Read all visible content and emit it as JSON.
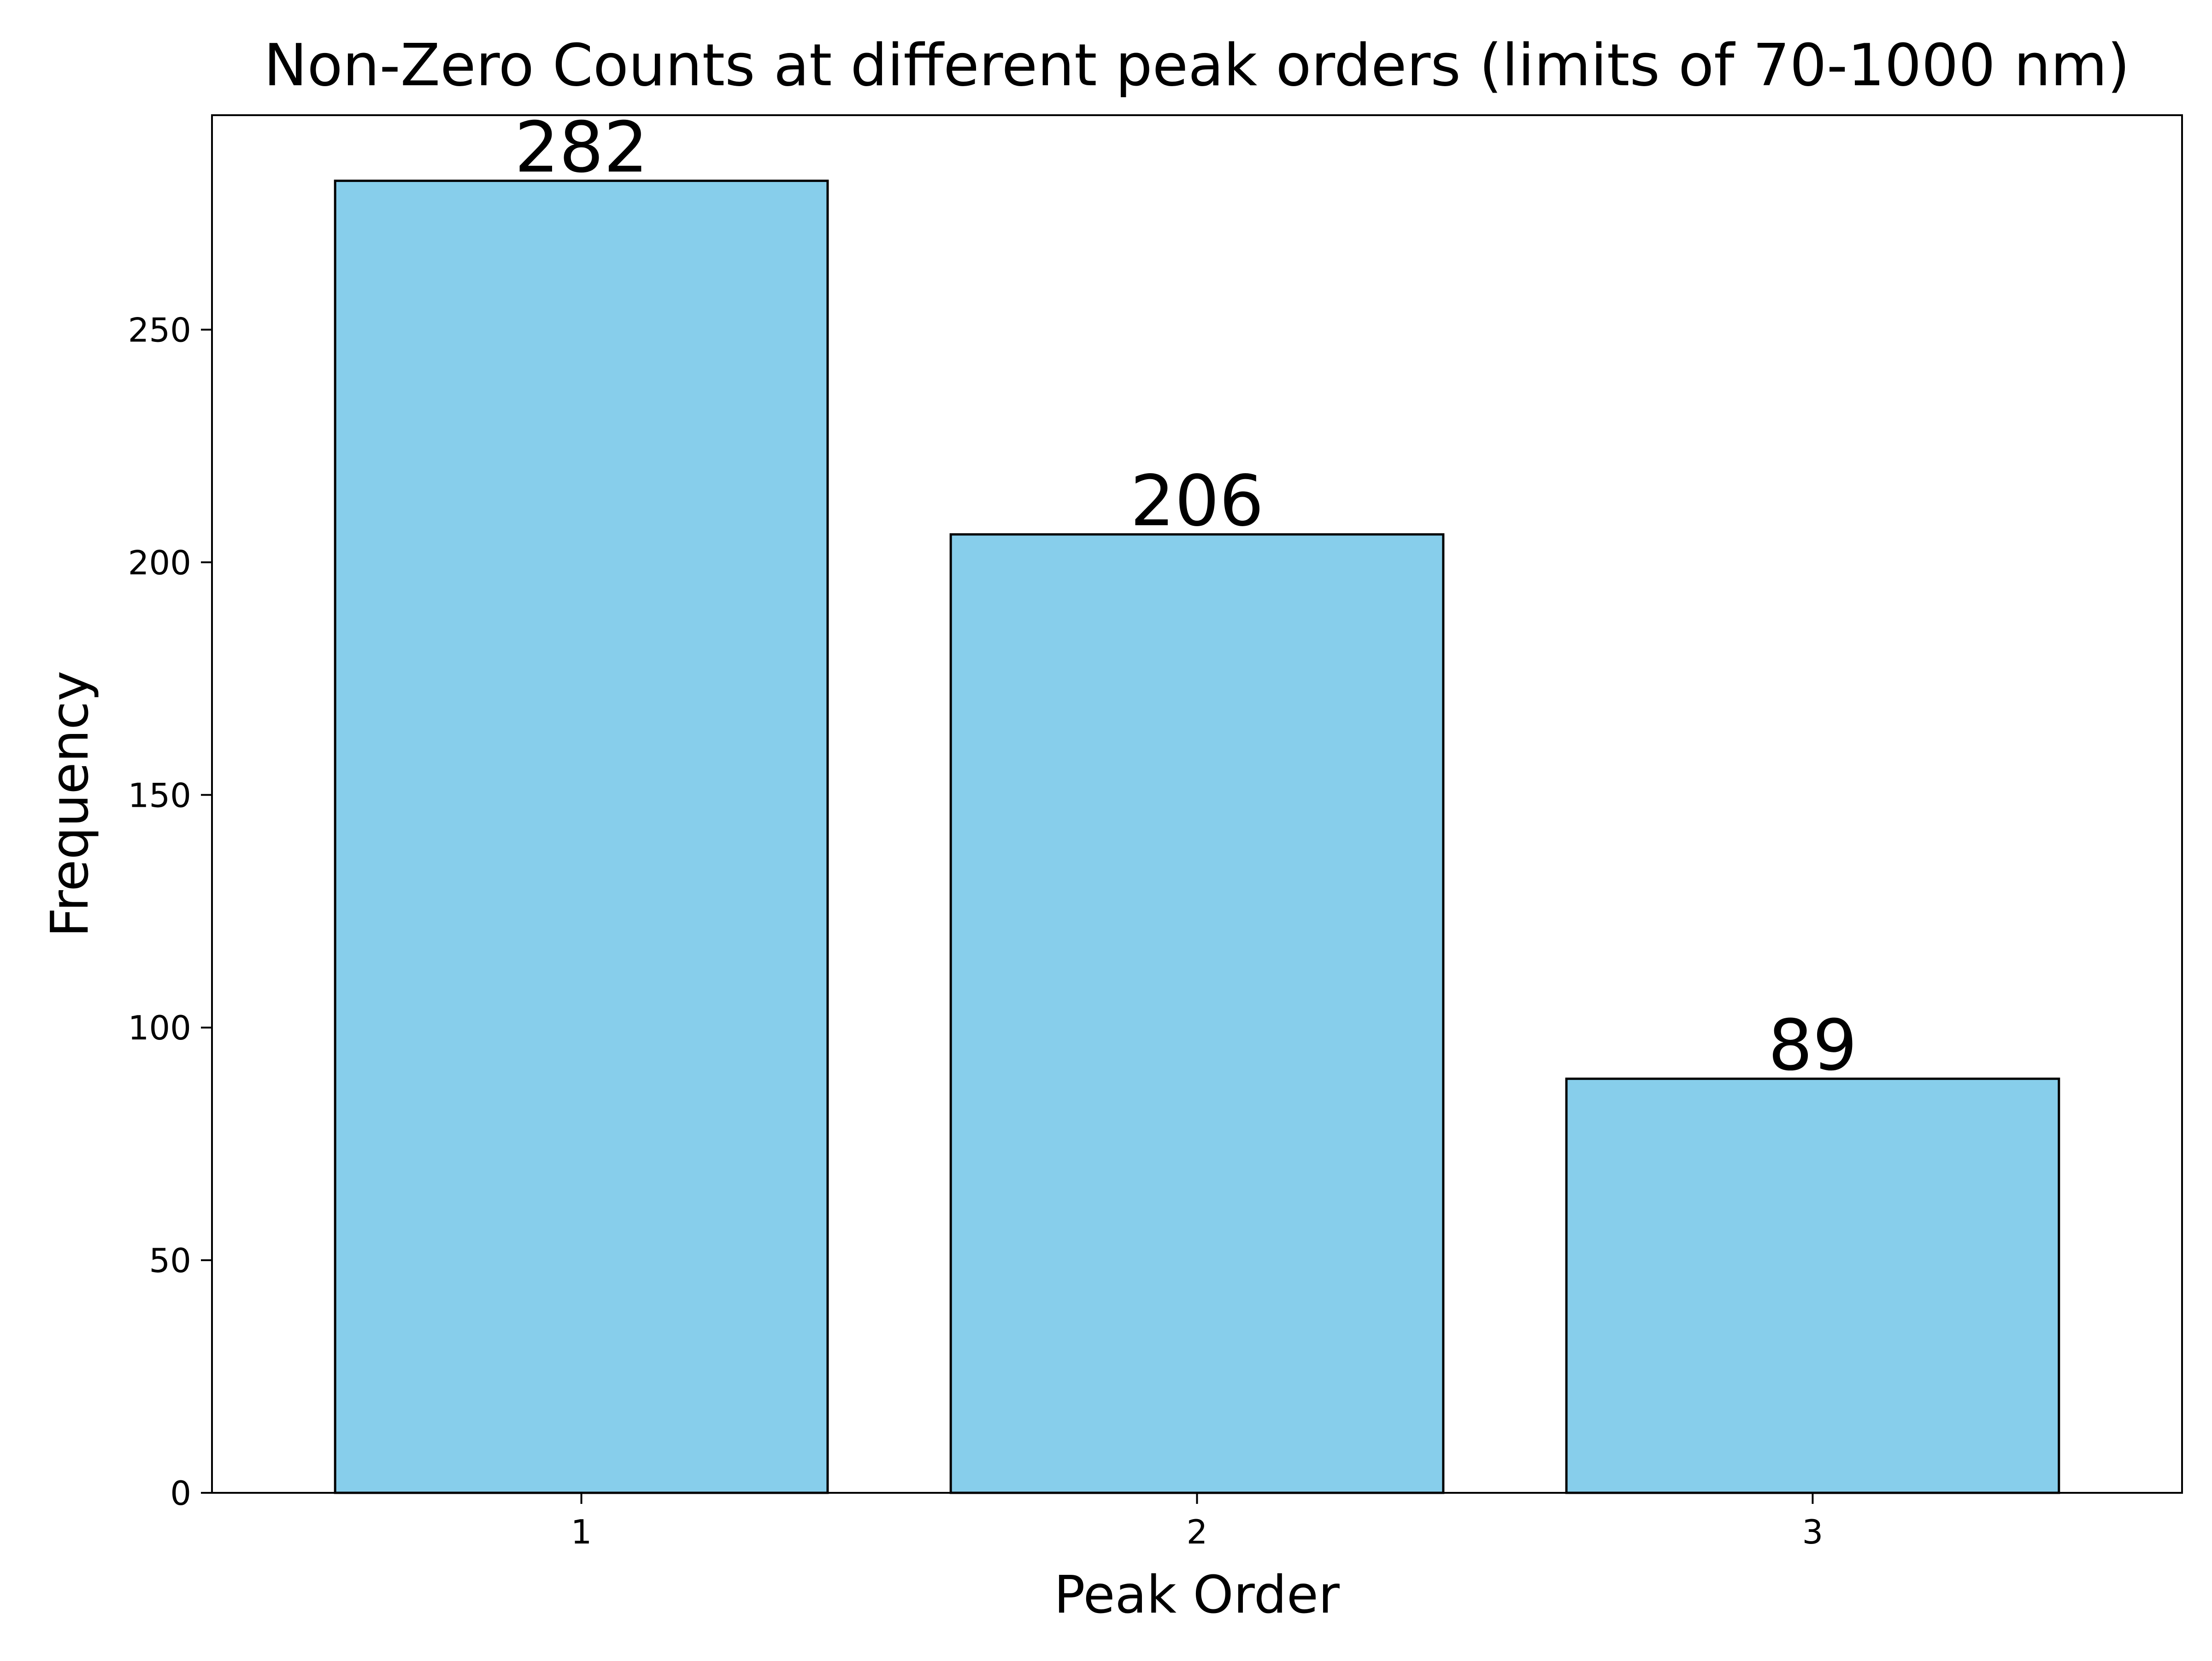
{
  "chart_data": {
    "type": "bar",
    "title": "Non-Zero Counts at different peak orders (limits of 70-1000 nm)",
    "xlabel": "Peak Order",
    "ylabel": "Frequency",
    "categories": [
      "1",
      "2",
      "3"
    ],
    "values": [
      282,
      206,
      89
    ],
    "data_labels": [
      "282",
      "206",
      "89"
    ],
    "ylim": [
      0,
      296.1
    ],
    "yticks": [
      0,
      50,
      100,
      150,
      200,
      250
    ],
    "ytick_labels": [
      "0",
      "50",
      "100",
      "150",
      "200",
      "250"
    ],
    "grid": false,
    "legend": "none",
    "colors": {
      "bar_fill": "#87CEEB",
      "bar_edge": "#000000",
      "axes": "#000000"
    }
  }
}
